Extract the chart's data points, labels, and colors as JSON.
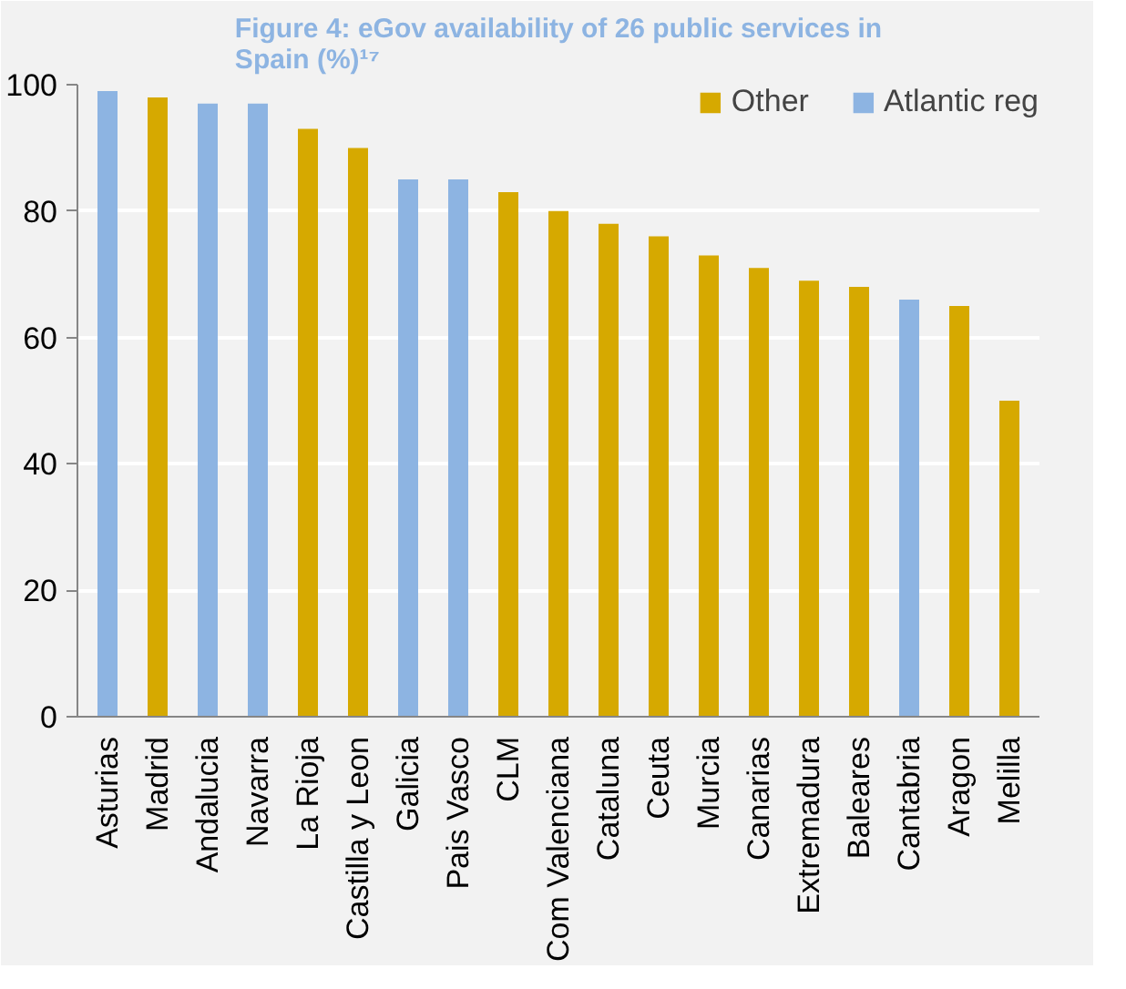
{
  "chart_data": {
    "type": "bar",
    "title": "Figure 4: eGov availability of 26 public services in Spain (%)¹⁷",
    "categories": [
      "Asturias",
      "Madrid",
      "Andalucia",
      "Navarra",
      "La Rioja",
      "Castilla y Leon",
      "Galicia",
      "Pais Vasco",
      "CLM",
      "Com Valenciana",
      "Cataluna",
      "Ceuta",
      "Murcia",
      "Canarias",
      "Extremadura",
      "Baleares",
      "Cantabria",
      "Aragon",
      "Melilla"
    ],
    "series": [
      {
        "name": "Other",
        "color": "#d6a900",
        "values": [
          null,
          98,
          null,
          null,
          93,
          90,
          null,
          null,
          83,
          80,
          78,
          76,
          73,
          71,
          69,
          68,
          null,
          65,
          50
        ]
      },
      {
        "name": "Atlantic reg",
        "color": "#8db4e2",
        "values": [
          99,
          null,
          97,
          97,
          null,
          null,
          85,
          85,
          null,
          null,
          null,
          null,
          null,
          null,
          null,
          null,
          66,
          null,
          null
        ]
      }
    ],
    "ylim": [
      0,
      100
    ],
    "yticks": [
      0,
      20,
      40,
      60,
      80,
      100
    ],
    "grid": "y",
    "legend": "top right"
  }
}
